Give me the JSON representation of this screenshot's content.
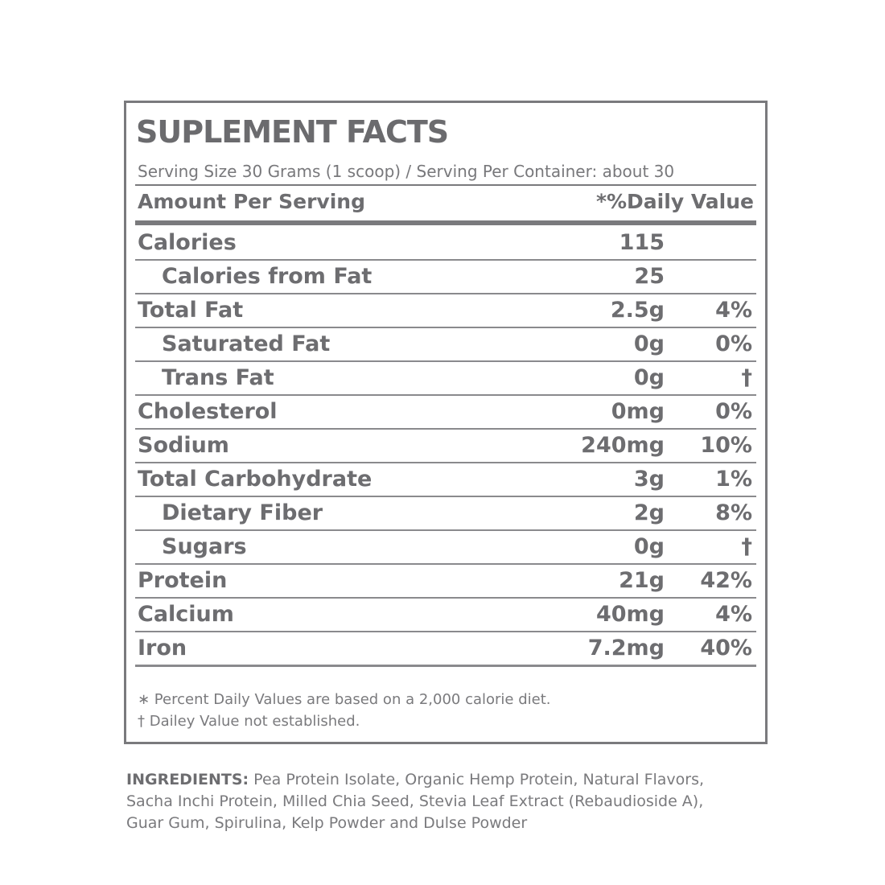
{
  "panel": {
    "title": "SUPLEMENT FACTS",
    "serving": "Serving Size 30 Grams (1 scoop) / Serving Per Container: about 30",
    "header_left": "Amount Per Serving",
    "header_right": "*%Daily Value",
    "rows": [
      {
        "name": "Calories",
        "amount": "115",
        "dv": ""
      },
      {
        "name": "Calories from Fat",
        "amount": "25",
        "dv": ""
      },
      {
        "name": "Total Fat",
        "amount": "2.5g",
        "dv": "4%"
      },
      {
        "name": "Saturated Fat",
        "amount": "0g",
        "dv": "0%"
      },
      {
        "name": "Trans Fat",
        "amount": "0g",
        "dv": "†"
      },
      {
        "name": "Cholesterol",
        "amount": "0mg",
        "dv": "0%"
      },
      {
        "name": "Sodium",
        "amount": "240mg",
        "dv": "10%"
      },
      {
        "name": "Total Carbohydrate",
        "amount": "3g",
        "dv": "1%"
      },
      {
        "name": "Dietary Fiber",
        "amount": "2g",
        "dv": "8%"
      },
      {
        "name": "Sugars",
        "amount": "0g",
        "dv": "†"
      },
      {
        "name": "Protein",
        "amount": "21g",
        "dv": "42%"
      },
      {
        "name": "Calcium",
        "amount": "40mg",
        "dv": "4%"
      },
      {
        "name": "Iron",
        "amount": "7.2mg",
        "dv": "40%"
      }
    ],
    "footnote_1": "∗ Percent Daily Values are based on a 2,000 calorie diet.",
    "footnote_2": "† Dailey Value not established."
  },
  "ingredients": {
    "label": "INGREDIENTS:",
    "line_1": " Pea Protein Isolate, Organic Hemp Protein, Natural Flavors,",
    "line_2": "Sacha Inchi Protein, Milled Chia Seed, Stevia Leaf Extract (Rebaudioside A),",
    "line_3": "Guar Gum, Spirulina, Kelp Powder and Dulse Powder"
  }
}
